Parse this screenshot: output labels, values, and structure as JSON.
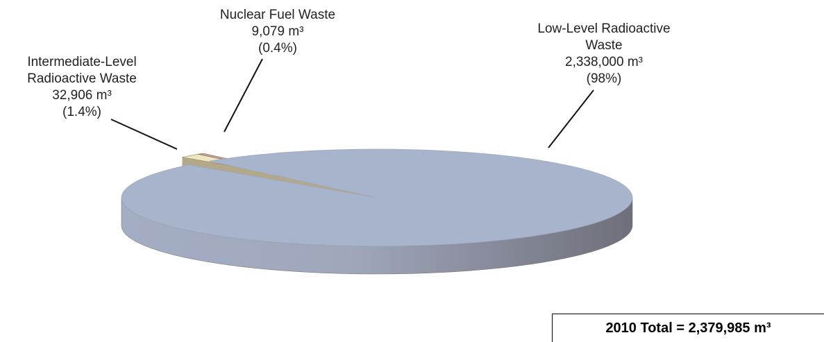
{
  "chart_data": {
    "type": "pie",
    "categories": [
      "Nuclear Fuel Waste",
      "Intermediate-Level Radioactive Waste",
      "Low-Level Radioactive Waste"
    ],
    "values": [
      9079,
      32906,
      2338000
    ],
    "value_labels": [
      "9,079 m³",
      "32,906 m³",
      "2,338,000 m³"
    ],
    "percent_labels": [
      "(0.4%)",
      "(1.4%)",
      "(98%)"
    ],
    "colors": [
      "#c9a2aa",
      "#eee6bf",
      "#a8b3cc"
    ],
    "annotation": "2010 Total = 2,379,985 m³"
  }
}
